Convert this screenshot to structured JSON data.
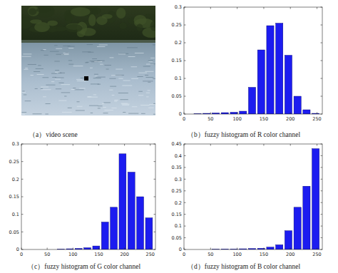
{
  "scene": {
    "caption": "（a）video scene"
  },
  "chart_data": [
    {
      "type": "histogram",
      "title": "（b）fuzzy histogram of R color channel",
      "bins": [
        0,
        17.0667,
        34.1333,
        51.2,
        68.2667,
        85.3333,
        102.4,
        119.4667,
        136.5333,
        153.6,
        170.6667,
        187.7333,
        204.8,
        221.8667,
        238.9333,
        256
      ],
      "values": [
        0,
        0.001,
        0.002,
        0.003,
        0.004,
        0.005,
        0.008,
        0.075,
        0.18,
        0.248,
        0.255,
        0.165,
        0.05,
        0.012,
        0.002
      ],
      "color": "#1c1cf0",
      "xlim": [
        0,
        260
      ],
      "xticks": [
        0,
        50,
        100,
        150,
        200,
        250
      ],
      "ylim": [
        0,
        0.3
      ],
      "yticks": [
        0,
        0.05,
        0.1,
        0.15,
        0.2,
        0.25,
        0.3
      ],
      "grid": false
    },
    {
      "type": "histogram",
      "title": "（c）fuzzy histogram of G color channel",
      "bins": [
        0,
        17.0667,
        34.1333,
        51.2,
        68.2667,
        85.3333,
        102.4,
        119.4667,
        136.5333,
        153.6,
        170.6667,
        187.7333,
        204.8,
        221.8667,
        238.9333,
        256
      ],
      "values": [
        0,
        0,
        0,
        0,
        0.001,
        0.002,
        0.003,
        0.005,
        0.01,
        0.078,
        0.12,
        0.272,
        0.22,
        0.15,
        0.09
      ],
      "color": "#1c1cf0",
      "xlim": [
        0,
        260
      ],
      "xticks": [
        0,
        50,
        100,
        150,
        200,
        250
      ],
      "ylim": [
        0,
        0.3
      ],
      "yticks": [
        0,
        0.05,
        0.1,
        0.15,
        0.2,
        0.25,
        0.3
      ],
      "grid": false
    },
    {
      "type": "histogram",
      "title": "（d）fuzzy histogram of B color channel",
      "bins": [
        0,
        17.0667,
        34.1333,
        51.2,
        68.2667,
        85.3333,
        102.4,
        119.4667,
        136.5333,
        153.6,
        170.6667,
        187.7333,
        204.8,
        221.8667,
        238.9333,
        256
      ],
      "values": [
        0,
        0,
        0,
        0.001,
        0.002,
        0.002,
        0.003,
        0.004,
        0.005,
        0.01,
        0.02,
        0.08,
        0.18,
        0.27,
        0.43
      ],
      "color": "#1c1cf0",
      "xlim": [
        0,
        260
      ],
      "xticks": [
        0,
        50,
        100,
        150,
        200,
        250
      ],
      "ylim": [
        0,
        0.45
      ],
      "yticks": [
        0,
        0.05,
        0.1,
        0.15,
        0.2,
        0.25,
        0.3,
        0.35,
        0.4,
        0.45
      ],
      "grid": false
    }
  ]
}
